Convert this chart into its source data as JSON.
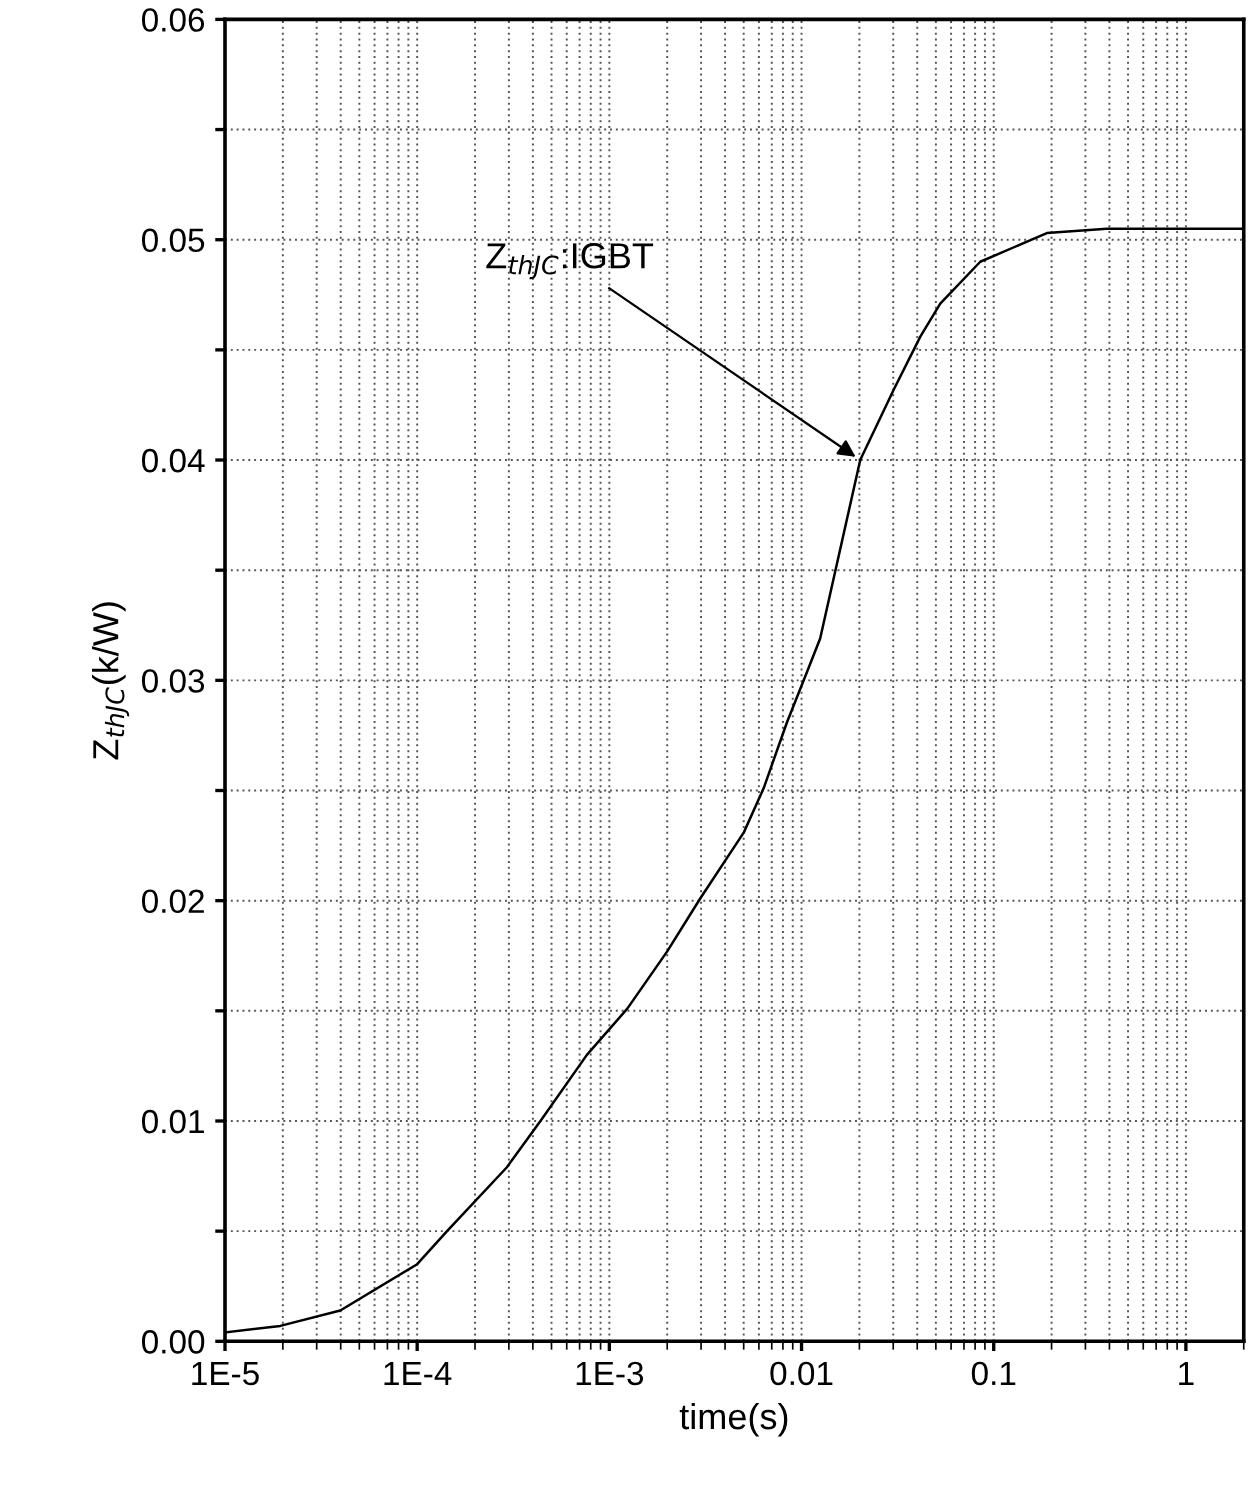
{
  "chart_data": {
    "type": "line",
    "xlabel": "time(s)",
    "ylabel": "Z$_{thJC}$(k/W)",
    "log": "x",
    "xlim": [
      1e-05,
      2
    ],
    "ylim": [
      0,
      0.06
    ],
    "xticks": [
      {
        "value": 1e-05,
        "label": "1E-5"
      },
      {
        "value": 0.0001,
        "label": "1E-4"
      },
      {
        "value": 0.001,
        "label": "1E-3"
      },
      0.01,
      0.1,
      1
    ],
    "yticks": [
      {
        "value": 0,
        "label": "0.00"
      },
      {
        "value": 0.005,
        "label": null
      },
      0.01,
      {
        "value": 0.015,
        "label": null
      },
      {
        "value": 0.02,
        "label": "0.02"
      },
      {
        "value": 0.025,
        "label": null
      },
      0.03,
      {
        "value": 0.035,
        "label": null
      },
      0.04,
      {
        "value": 0.045,
        "label": null
      },
      0.05,
      {
        "value": 0.055,
        "label": null
      },
      0.06
    ],
    "grid": true,
    "marker": "none",
    "line_style": "solid",
    "annotations": [
      {
        "text": "Z$_{thJC}$:IGBT",
        "x": 0.0202,
        "y": 0.04
      }
    ],
    "series": [
      {
        "color": "#000000",
        "x": [
          1e-05,
          1.94e-05,
          3.98e-05,
          0.0001,
          0.000143,
          0.000293,
          0.000438,
          0.000764,
          0.00124,
          0.002,
          0.00297,
          0.00501,
          0.00635,
          0.0084,
          0.0107,
          0.0125,
          0.0202,
          0.0302,
          0.0415,
          0.0527,
          0.0851,
          0.189,
          0.388,
          2
        ],
        "values": [
          0.0004,
          0.0007,
          0.0014,
          0.0035,
          0.005,
          0.0079,
          0.01,
          0.013,
          0.0151,
          0.0177,
          0.0201,
          0.0231,
          0.0251,
          0.0281,
          0.0304,
          0.0319,
          0.04,
          0.0432,
          0.0456,
          0.0471,
          0.049,
          0.0503,
          0.0505,
          0.0505
        ]
      }
    ]
  }
}
